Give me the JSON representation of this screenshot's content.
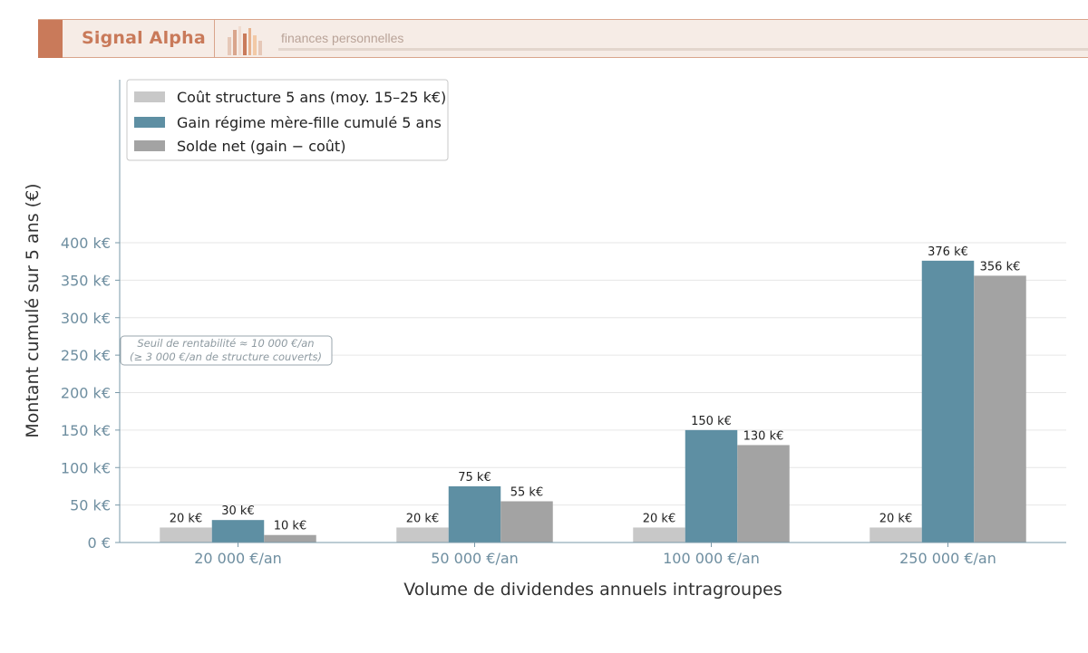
{
  "header": {
    "brand": "Signal Alpha",
    "tagline": "finances personnelles",
    "logo_icon": "bar-chart-logo-icon",
    "colors": {
      "accent": "#c97a5a",
      "background": "#f6ece6"
    }
  },
  "chart_data": {
    "type": "bar",
    "title": "",
    "xlabel": "Volume de dividendes annuels intragroupes",
    "ylabel": "Montant cumulé sur 5 ans (€)",
    "ylim": [
      0,
      480
    ],
    "yticks": [
      0,
      50,
      100,
      150,
      200,
      250,
      300,
      350,
      400
    ],
    "ytick_labels": [
      "0 €",
      "50 k€",
      "100 k€",
      "150 k€",
      "200 k€",
      "250 k€",
      "300 k€",
      "350 k€",
      "400 k€"
    ],
    "categories": [
      "20 000 €/an",
      "50 000 €/an",
      "100 000 €/an",
      "250 000 €/an"
    ],
    "series": [
      {
        "name": "Coût structure 5 ans (moy. 15–25 k€)",
        "color": "#c8c8c8",
        "values": [
          20,
          20,
          20,
          20
        ],
        "labels": [
          "20 k€",
          "20 k€",
          "20 k€",
          "20 k€"
        ]
      },
      {
        "name": "Gain régime mère-fille cumulé 5 ans",
        "color": "#5e8fa3",
        "values": [
          30,
          75,
          150,
          376
        ],
        "labels": [
          "30 k€",
          "75 k€",
          "150 k€",
          "376 k€"
        ]
      },
      {
        "name": "Solde net (gain − coût)",
        "color": "#a3a3a3",
        "values": [
          10,
          55,
          130,
          356
        ],
        "labels": [
          "10 k€",
          "55 k€",
          "130 k€",
          "356 k€"
        ]
      }
    ],
    "legend": {
      "placement": "top-left"
    },
    "grid": {
      "y": true
    },
    "annotation": {
      "lines": [
        "Seuil de rentabilité ≈ 10 000 €/an",
        "(≥ 3 000 €/an de structure couverts)"
      ],
      "y_value": 250
    }
  }
}
